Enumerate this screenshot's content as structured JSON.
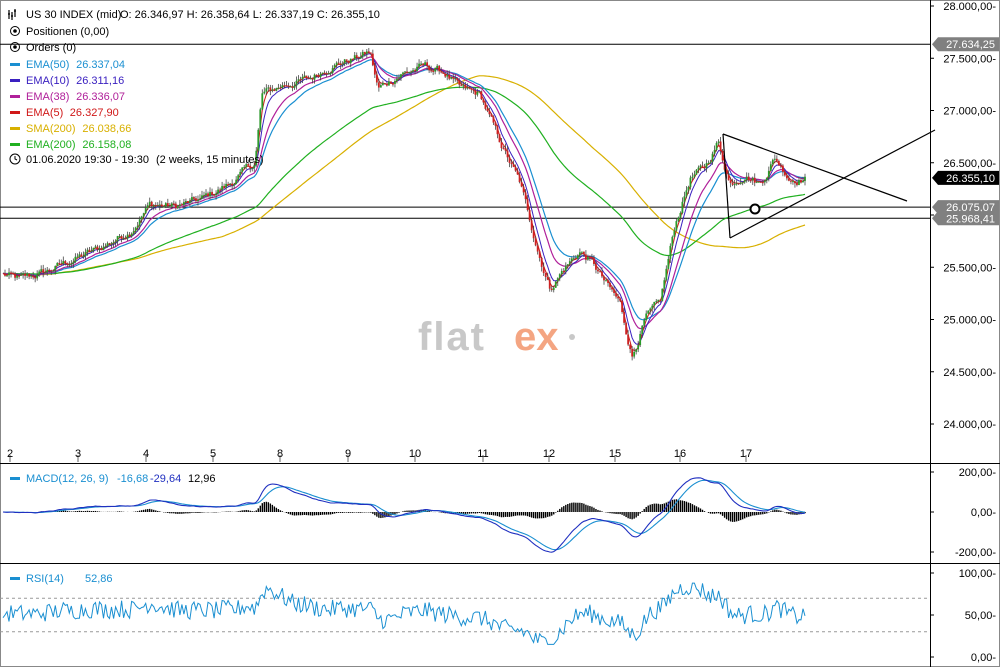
{
  "header": {
    "instrument": "US 30 INDEX (mid)",
    "ohlc": "O: 26.346,97  H: 26.358,64  L: 26.337,19  C: 26.355,10",
    "positions": "Positionen (0,00)",
    "orders": "Orders (0)",
    "date_range": "01.06.2020 19:30 - 19:30",
    "period": "(2 weeks, 15 minutes)"
  },
  "watermark": {
    "text": "flat",
    "accent": "ex",
    "accent_color": "#f4a582"
  },
  "indicators": [
    {
      "name": "EMA(50)",
      "value": "26.337,04",
      "color": "#1a8fd1"
    },
    {
      "name": "EMA(10)",
      "value": "26.311,16",
      "color": "#3a20c0"
    },
    {
      "name": "EMA(38)",
      "value": "26.336,07",
      "color": "#b0209a"
    },
    {
      "name": "EMA(5)",
      "value": "26.327,90",
      "color": "#d01818"
    },
    {
      "name": "SMA(200)",
      "value": "26.038,66",
      "color": "#d8b000"
    },
    {
      "name": "EMA(200)",
      "value": "26.158,08",
      "color": "#20b020"
    }
  ],
  "price_axis": {
    "ticks": [
      "28.000,00-",
      "27.500,00-",
      "27.000,00-",
      "26.500,00-",
      "26.000,00-",
      "25.500,00-",
      "25.000,00-",
      "24.500,00-",
      "24.000,00-"
    ],
    "tick_values": [
      28000,
      27500,
      27000,
      26500,
      26000,
      25500,
      25000,
      24500,
      24000
    ],
    "badges": [
      {
        "text": "27.634,25",
        "value": 27634.25,
        "style": "gray"
      },
      {
        "text": "26.355,10",
        "value": 26355.1,
        "style": "black"
      },
      {
        "text": "26.075,07",
        "value": 26075.07,
        "style": "gray"
      },
      {
        "text": "25.968,41",
        "value": 25968.41,
        "style": "gray"
      }
    ]
  },
  "time_axis": {
    "labels": [
      "2",
      "3",
      "4",
      "5",
      "8",
      "9",
      "10",
      "11",
      "12",
      "15",
      "16",
      "17"
    ]
  },
  "macd": {
    "label": "MACD(12, 26, 9)",
    "v1": "-16,68",
    "v2": "-29,64",
    "v3": "12,96",
    "ticks": [
      "200,00-",
      "0,00-",
      "-200,00-"
    ],
    "tick_values": [
      200,
      0,
      -200
    ]
  },
  "rsi": {
    "label": "RSI(14)",
    "value": "52,86",
    "ticks": [
      "100,00-",
      "50,00-",
      "0,00-"
    ],
    "tick_values": [
      100,
      50,
      0
    ]
  },
  "chart_data": [
    {
      "type": "line",
      "title": "US 30 INDEX (mid)",
      "x": [
        "2",
        "3",
        "4",
        "5",
        "8",
        "9",
        "10",
        "11",
        "12",
        "15",
        "16",
        "17"
      ],
      "ylim": [
        23800,
        28000
      ],
      "series": [
        {
          "name": "US 30 INDEX (mid)",
          "values": [
            25400,
            25650,
            26300,
            26200,
            27300,
            27550,
            27300,
            27150,
            25200,
            25400,
            26400,
            26355
          ]
        },
        {
          "name": "EMA(50)",
          "values": [
            25400,
            25600,
            26200,
            26200,
            27200,
            27500,
            27350,
            27050,
            25500,
            25300,
            26300,
            26337
          ]
        },
        {
          "name": "SMA(200)",
          "values": [
            25380,
            25450,
            25750,
            25950,
            26450,
            27000,
            27300,
            27250,
            26600,
            25750,
            25600,
            26039
          ]
        },
        {
          "name": "EMA(200)",
          "values": [
            25380,
            25500,
            25800,
            26000,
            26600,
            27050,
            27250,
            27100,
            26300,
            25700,
            25900,
            26158
          ]
        }
      ]
    },
    {
      "type": "line",
      "title": "MACD(12, 26, 9)",
      "x": [
        "2",
        "3",
        "4",
        "5",
        "8",
        "9",
        "10",
        "11",
        "12",
        "15",
        "16",
        "17"
      ],
      "ylim": [
        -230,
        230
      ],
      "series": [
        {
          "name": "MACD",
          "values": [
            -10,
            20,
            40,
            -10,
            200,
            30,
            -30,
            -70,
            -210,
            -60,
            200,
            -17
          ]
        },
        {
          "name": "Signal",
          "values": [
            0,
            10,
            30,
            0,
            150,
            40,
            -20,
            -50,
            -180,
            -80,
            150,
            -30
          ]
        }
      ]
    },
    {
      "type": "line",
      "title": "RSI(14)",
      "x": [
        "2",
        "3",
        "4",
        "5",
        "8",
        "9",
        "10",
        "11",
        "12",
        "15",
        "16",
        "17"
      ],
      "ylim": [
        0,
        100
      ],
      "series": [
        {
          "name": "RSI(14)",
          "values": [
            60,
            70,
            65,
            55,
            72,
            60,
            45,
            40,
            30,
            45,
            70,
            53
          ]
        }
      ]
    }
  ]
}
